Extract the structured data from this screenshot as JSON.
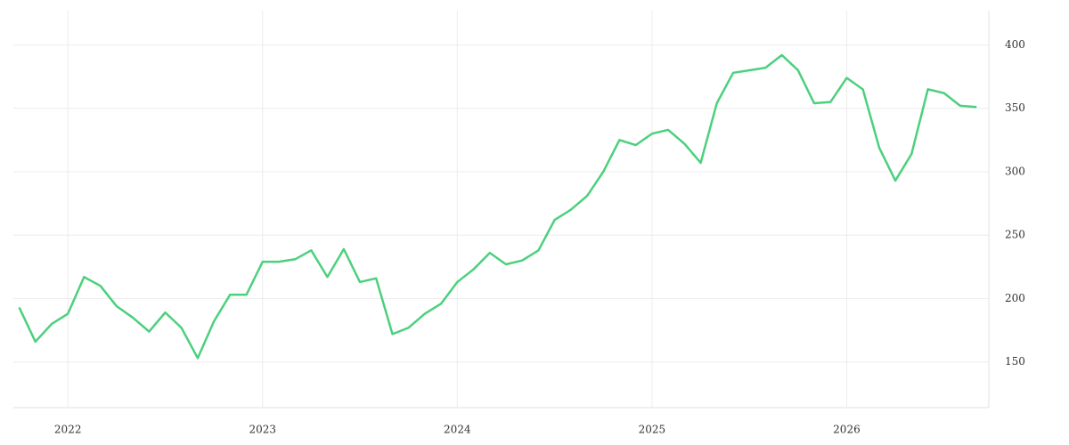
{
  "chart_data": {
    "type": "line",
    "x": [
      2021.75,
      2021.833,
      2021.917,
      2022.0,
      2022.083,
      2022.167,
      2022.25,
      2022.333,
      2022.417,
      2022.5,
      2022.583,
      2022.667,
      2022.75,
      2022.833,
      2022.917,
      2023.0,
      2023.083,
      2023.167,
      2023.25,
      2023.333,
      2023.417,
      2023.5,
      2023.583,
      2023.667,
      2023.75,
      2023.833,
      2023.917,
      2024.0,
      2024.083,
      2024.167,
      2024.25,
      2024.333,
      2024.417,
      2024.5,
      2024.583,
      2024.667,
      2024.75,
      2024.833,
      2024.917,
      2025.0,
      2025.083,
      2025.167,
      2025.25,
      2025.333,
      2025.417,
      2025.5,
      2025.583,
      2025.667,
      2025.75,
      2025.833,
      2025.917,
      2026.0,
      2026.083,
      2026.167,
      2026.25,
      2026.333,
      2026.417,
      2026.5,
      2026.583,
      2026.667
    ],
    "series": [
      {
        "color": "#4cd07d",
        "values": [
          193,
          166,
          180,
          188,
          217,
          210,
          194,
          185,
          174,
          189,
          177,
          153,
          182,
          203,
          203,
          229,
          229,
          231,
          238,
          217,
          239,
          213,
          216,
          172,
          177,
          188,
          196,
          213,
          223,
          236,
          227,
          230,
          238,
          262,
          270,
          281,
          300,
          325,
          321,
          330,
          333,
          322,
          307,
          354,
          378,
          380,
          382,
          392,
          380,
          354,
          355,
          374,
          365,
          319,
          293,
          314,
          365,
          362,
          352,
          351
        ]
      }
    ],
    "xlim": [
      2021.72,
      2026.73
    ],
    "xticks": [
      2022,
      2023,
      2024,
      2025,
      2026
    ],
    "ylim": [
      114,
      427
    ],
    "yticks": [
      150,
      200,
      250,
      300,
      350,
      400
    ],
    "grid": true
  }
}
